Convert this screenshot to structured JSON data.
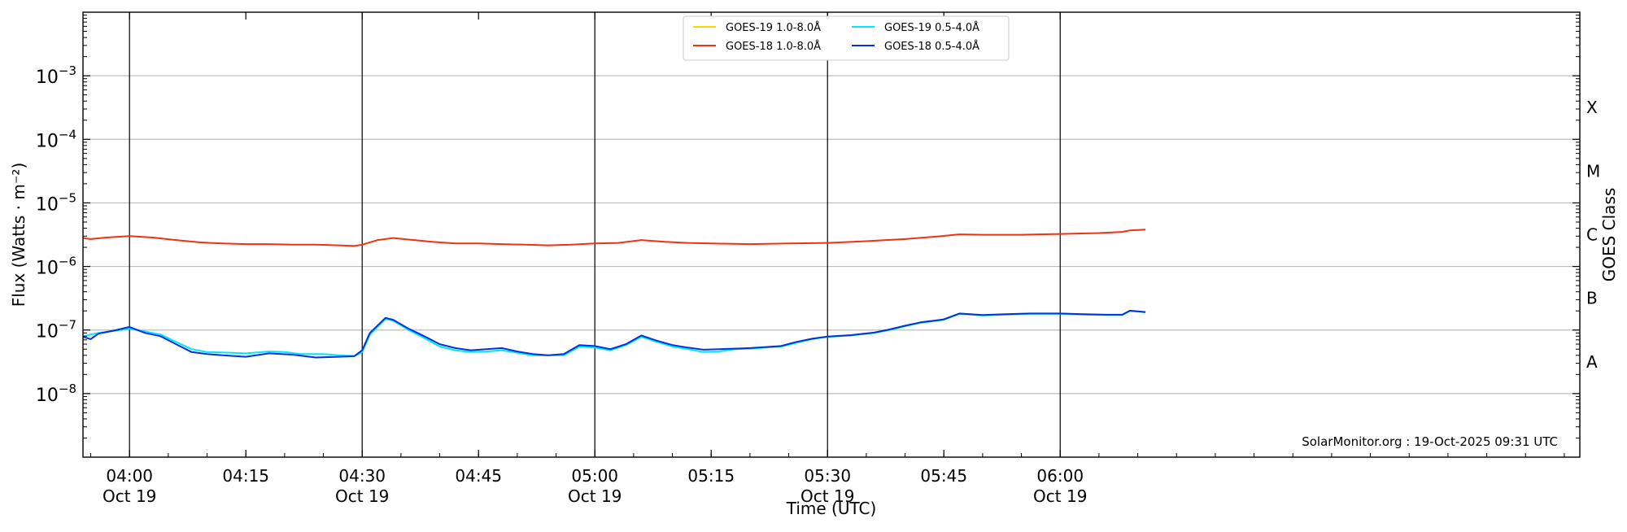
{
  "chart_data": {
    "type": "line",
    "xlabel": "Time (UTC)",
    "ylabel": "Flux (Watts · m⁻²)",
    "ylabel_right": "GOES Class",
    "credit": "SolarMonitor.org : 19-Oct-2025 09:31 UTC",
    "yscale": "log",
    "ylim": [
      1e-09,
      0.01
    ],
    "xlim": [
      "03:54",
      "07:07"
    ],
    "grid": true,
    "legend_position": "top-center",
    "x_ticks": [
      {
        "t": "04:00",
        "label": "04:00",
        "sub": "Oct 19"
      },
      {
        "t": "04:15",
        "label": "04:15",
        "sub": ""
      },
      {
        "t": "04:30",
        "label": "04:30",
        "sub": "Oct 19"
      },
      {
        "t": "04:45",
        "label": "04:45",
        "sub": ""
      },
      {
        "t": "05:00",
        "label": "05:00",
        "sub": "Oct 19"
      },
      {
        "t": "05:15",
        "label": "05:15",
        "sub": ""
      },
      {
        "t": "05:30",
        "label": "05:30",
        "sub": "Oct 19"
      },
      {
        "t": "05:45",
        "label": "05:45",
        "sub": ""
      },
      {
        "t": "06:00",
        "label": "06:00",
        "sub": "Oct 19"
      }
    ],
    "y_ticks": [
      {
        "value": 0.001,
        "base": "10",
        "exp": "−3"
      },
      {
        "value": 0.0001,
        "base": "10",
        "exp": "−4"
      },
      {
        "value": 1e-05,
        "base": "10",
        "exp": "−5"
      },
      {
        "value": 1e-06,
        "base": "10",
        "exp": "−6"
      },
      {
        "value": 1e-07,
        "base": "10",
        "exp": "−7"
      },
      {
        "value": 1e-08,
        "base": "10",
        "exp": "−8"
      }
    ],
    "class_labels": [
      {
        "label": "X",
        "value": 0.000316
      },
      {
        "label": "M",
        "value": 3.16e-05
      },
      {
        "label": "C",
        "value": 3.16e-06
      },
      {
        "label": "B",
        "value": 3.16e-07
      },
      {
        "label": "A",
        "value": 3.16e-08
      }
    ],
    "series": [
      {
        "name": "GOES-19 1.0-8.0Å",
        "color": "#ffd700",
        "legend_only": true,
        "points": []
      },
      {
        "name": "GOES-19 0.5-4.0Å",
        "color": "#00e5ff",
        "points": [
          [
            "03:54",
            8e-08
          ],
          [
            "03:56",
            9e-08
          ],
          [
            "04:00",
            1.05e-07
          ],
          [
            "04:02",
            9.5e-08
          ],
          [
            "04:04",
            8.5e-08
          ],
          [
            "04:06",
            6.5e-08
          ],
          [
            "04:08",
            5e-08
          ],
          [
            "04:10",
            4.5e-08
          ],
          [
            "04:13",
            4.4e-08
          ],
          [
            "04:15",
            4.3e-08
          ],
          [
            "04:18",
            4.6e-08
          ],
          [
            "04:20",
            4.5e-08
          ],
          [
            "04:22",
            4.2e-08
          ],
          [
            "04:25",
            4.2e-08
          ],
          [
            "04:27",
            4e-08
          ],
          [
            "04:29",
            3.9e-08
          ],
          [
            "04:30",
            4.5e-08
          ],
          [
            "04:31",
            8.5e-08
          ],
          [
            "04:33",
            1.5e-07
          ],
          [
            "04:34",
            1.4e-07
          ],
          [
            "04:36",
            1e-07
          ],
          [
            "04:38",
            7.5e-08
          ],
          [
            "04:40",
            5.5e-08
          ],
          [
            "04:42",
            4.8e-08
          ],
          [
            "04:44",
            4.5e-08
          ],
          [
            "04:46",
            4.6e-08
          ],
          [
            "04:48",
            4.8e-08
          ],
          [
            "04:50",
            4.4e-08
          ],
          [
            "04:52",
            4e-08
          ],
          [
            "04:54",
            4e-08
          ],
          [
            "04:56",
            4e-08
          ],
          [
            "04:58",
            5.5e-08
          ],
          [
            "05:00",
            5.3e-08
          ],
          [
            "05:02",
            4.8e-08
          ],
          [
            "05:04",
            5.8e-08
          ],
          [
            "05:06",
            7.8e-08
          ],
          [
            "05:08",
            6.5e-08
          ],
          [
            "05:10",
            5.5e-08
          ],
          [
            "05:12",
            5e-08
          ],
          [
            "05:14",
            4.5e-08
          ],
          [
            "05:16",
            4.6e-08
          ],
          [
            "05:18",
            5e-08
          ],
          [
            "05:20",
            5.1e-08
          ],
          [
            "05:22",
            5.3e-08
          ],
          [
            "05:24",
            5.5e-08
          ],
          [
            "05:26",
            6.3e-08
          ],
          [
            "05:28",
            7.2e-08
          ],
          [
            "05:30",
            7.8e-08
          ],
          [
            "05:33",
            8.2e-08
          ],
          [
            "05:36",
            9e-08
          ],
          [
            "05:38",
            1e-07
          ],
          [
            "05:40",
            1.15e-07
          ],
          [
            "05:42",
            1.3e-07
          ],
          [
            "05:45",
            1.45e-07
          ],
          [
            "05:47",
            1.8e-07
          ],
          [
            "05:50",
            1.7e-07
          ],
          [
            "05:53",
            1.75e-07
          ],
          [
            "05:56",
            1.8e-07
          ],
          [
            "06:00",
            1.8e-07
          ],
          [
            "06:03",
            1.75e-07
          ],
          [
            "06:06",
            1.72e-07
          ],
          [
            "06:08",
            1.72e-07
          ],
          [
            "06:09",
            2e-07
          ],
          [
            "06:11",
            1.9e-07
          ]
        ]
      },
      {
        "name": "GOES-18 1.0-8.0Å",
        "color": "#ee3311",
        "points": [
          [
            "03:54",
            2.8e-06
          ],
          [
            "03:55",
            2.7e-06
          ],
          [
            "03:57",
            2.85e-06
          ],
          [
            "04:00",
            3e-06
          ],
          [
            "04:03",
            2.85e-06
          ],
          [
            "04:06",
            2.6e-06
          ],
          [
            "04:09",
            2.4e-06
          ],
          [
            "04:12",
            2.3e-06
          ],
          [
            "04:15",
            2.25e-06
          ],
          [
            "04:18",
            2.25e-06
          ],
          [
            "04:21",
            2.2e-06
          ],
          [
            "04:24",
            2.2e-06
          ],
          [
            "04:27",
            2.15e-06
          ],
          [
            "04:29",
            2.1e-06
          ],
          [
            "04:30",
            2.2e-06
          ],
          [
            "04:32",
            2.6e-06
          ],
          [
            "04:34",
            2.8e-06
          ],
          [
            "04:36",
            2.65e-06
          ],
          [
            "04:39",
            2.45e-06
          ],
          [
            "04:42",
            2.3e-06
          ],
          [
            "04:45",
            2.3e-06
          ],
          [
            "04:48",
            2.25e-06
          ],
          [
            "04:51",
            2.2e-06
          ],
          [
            "04:54",
            2.15e-06
          ],
          [
            "04:57",
            2.2e-06
          ],
          [
            "05:00",
            2.3e-06
          ],
          [
            "05:03",
            2.35e-06
          ],
          [
            "05:06",
            2.6e-06
          ],
          [
            "05:09",
            2.45e-06
          ],
          [
            "05:12",
            2.35e-06
          ],
          [
            "05:15",
            2.3e-06
          ],
          [
            "05:20",
            2.25e-06
          ],
          [
            "05:25",
            2.3e-06
          ],
          [
            "05:30",
            2.35e-06
          ],
          [
            "05:35",
            2.5e-06
          ],
          [
            "05:40",
            2.7e-06
          ],
          [
            "05:44",
            2.95e-06
          ],
          [
            "05:47",
            3.2e-06
          ],
          [
            "05:50",
            3.15e-06
          ],
          [
            "05:55",
            3.15e-06
          ],
          [
            "06:00",
            3.25e-06
          ],
          [
            "06:05",
            3.35e-06
          ],
          [
            "06:08",
            3.5e-06
          ],
          [
            "06:09",
            3.7e-06
          ],
          [
            "06:11",
            3.8e-06
          ]
        ]
      },
      {
        "name": "GOES-18 0.5-4.0Å",
        "color": "#0033dd",
        "points": [
          [
            "03:54",
            7.8e-08
          ],
          [
            "03:55",
            7.2e-08
          ],
          [
            "03:56",
            8.8e-08
          ],
          [
            "03:58",
            9.8e-08
          ],
          [
            "04:00",
            1.12e-07
          ],
          [
            "04:02",
            9e-08
          ],
          [
            "04:04",
            8e-08
          ],
          [
            "04:06",
            6e-08
          ],
          [
            "04:08",
            4.5e-08
          ],
          [
            "04:10",
            4.2e-08
          ],
          [
            "04:12",
            4e-08
          ],
          [
            "04:15",
            3.8e-08
          ],
          [
            "04:18",
            4.3e-08
          ],
          [
            "04:21",
            4.1e-08
          ],
          [
            "04:24",
            3.7e-08
          ],
          [
            "04:27",
            3.8e-08
          ],
          [
            "04:29",
            3.9e-08
          ],
          [
            "04:30",
            4.8e-08
          ],
          [
            "04:31",
            9e-08
          ],
          [
            "04:33",
            1.55e-07
          ],
          [
            "04:34",
            1.45e-07
          ],
          [
            "04:36",
            1.05e-07
          ],
          [
            "04:38",
            8e-08
          ],
          [
            "04:40",
            6e-08
          ],
          [
            "04:42",
            5.2e-08
          ],
          [
            "04:44",
            4.8e-08
          ],
          [
            "04:46",
            5e-08
          ],
          [
            "04:48",
            5.2e-08
          ],
          [
            "04:50",
            4.6e-08
          ],
          [
            "04:52",
            4.2e-08
          ],
          [
            "04:54",
            4e-08
          ],
          [
            "04:56",
            4.2e-08
          ],
          [
            "04:58",
            5.8e-08
          ],
          [
            "05:00",
            5.6e-08
          ],
          [
            "05:02",
            5e-08
          ],
          [
            "05:04",
            6e-08
          ],
          [
            "05:06",
            8.2e-08
          ],
          [
            "05:08",
            6.8e-08
          ],
          [
            "05:10",
            5.8e-08
          ],
          [
            "05:12",
            5.3e-08
          ],
          [
            "05:14",
            4.9e-08
          ],
          [
            "05:16",
            5e-08
          ],
          [
            "05:18",
            5.1e-08
          ],
          [
            "05:20",
            5.2e-08
          ],
          [
            "05:22",
            5.4e-08
          ],
          [
            "05:24",
            5.6e-08
          ],
          [
            "05:26",
            6.5e-08
          ],
          [
            "05:28",
            7.3e-08
          ],
          [
            "05:30",
            7.9e-08
          ],
          [
            "05:33",
            8.3e-08
          ],
          [
            "05:36",
            9.1e-08
          ],
          [
            "05:38",
            1.02e-07
          ],
          [
            "05:40",
            1.17e-07
          ],
          [
            "05:42",
            1.32e-07
          ],
          [
            "05:45",
            1.47e-07
          ],
          [
            "05:47",
            1.82e-07
          ],
          [
            "05:50",
            1.72e-07
          ],
          [
            "05:53",
            1.77e-07
          ],
          [
            "05:56",
            1.82e-07
          ],
          [
            "06:00",
            1.82e-07
          ],
          [
            "06:03",
            1.77e-07
          ],
          [
            "06:06",
            1.74e-07
          ],
          [
            "06:08",
            1.74e-07
          ],
          [
            "06:09",
            2.02e-07
          ],
          [
            "06:11",
            1.92e-07
          ]
        ]
      }
    ]
  }
}
